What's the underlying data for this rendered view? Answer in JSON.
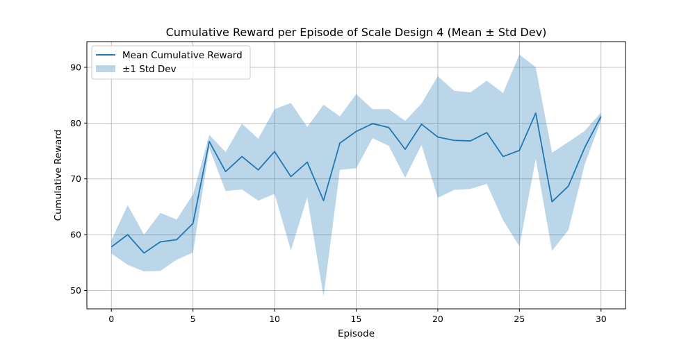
{
  "chart_data": {
    "type": "line",
    "title": "Cumulative Reward per Episode of Scale Design 4 (Mean ± Std Dev)",
    "xlabel": "Episode",
    "ylabel": "Cumulative Reward",
    "xlim": [
      -1.5,
      31.5
    ],
    "ylim": [
      46.7,
      94.6
    ],
    "xticks": [
      0,
      5,
      10,
      15,
      20,
      25,
      30
    ],
    "yticks": [
      50,
      60,
      70,
      80,
      90
    ],
    "grid": true,
    "legend_position": "top-left",
    "colors": {
      "line": "#1f77b4",
      "band": "#1f77b4",
      "grid": "#b0b0b0"
    },
    "x": [
      0,
      1,
      2,
      3,
      4,
      5,
      6,
      7,
      8,
      9,
      10,
      11,
      12,
      13,
      14,
      15,
      16,
      17,
      18,
      19,
      20,
      21,
      22,
      23,
      24,
      25,
      26,
      27,
      28,
      29,
      30
    ],
    "series": [
      {
        "name": "Mean Cumulative Reward",
        "values": [
          57.8,
          60.0,
          56.7,
          58.7,
          59.1,
          62.0,
          76.7,
          71.3,
          74.0,
          71.6,
          74.9,
          70.4,
          73.0,
          66.1,
          76.4,
          78.5,
          79.9,
          79.2,
          75.3,
          79.8,
          77.5,
          76.9,
          76.8,
          78.3,
          74.0,
          75.1,
          81.8,
          65.9,
          68.7,
          75.6,
          81.2
        ]
      },
      {
        "name": "±1 Std Dev",
        "kind": "band",
        "upper": [
          59.0,
          65.3,
          60.0,
          63.9,
          62.7,
          67.2,
          77.9,
          74.8,
          79.9,
          77.2,
          82.5,
          83.6,
          79.3,
          83.3,
          81.2,
          85.2,
          82.5,
          82.5,
          80.4,
          83.5,
          88.4,
          85.8,
          85.5,
          87.6,
          85.4,
          92.3,
          90.0,
          74.7,
          76.6,
          78.6,
          81.9
        ],
        "lower": [
          56.6,
          54.6,
          53.4,
          53.5,
          55.5,
          56.8,
          75.5,
          67.8,
          68.1,
          66.1,
          67.3,
          57.2,
          66.7,
          48.9,
          71.6,
          71.9,
          77.3,
          75.9,
          70.2,
          76.1,
          66.6,
          68.0,
          68.2,
          69.1,
          62.6,
          57.9,
          73.6,
          57.1,
          60.8,
          72.6,
          80.5
        ]
      }
    ]
  }
}
